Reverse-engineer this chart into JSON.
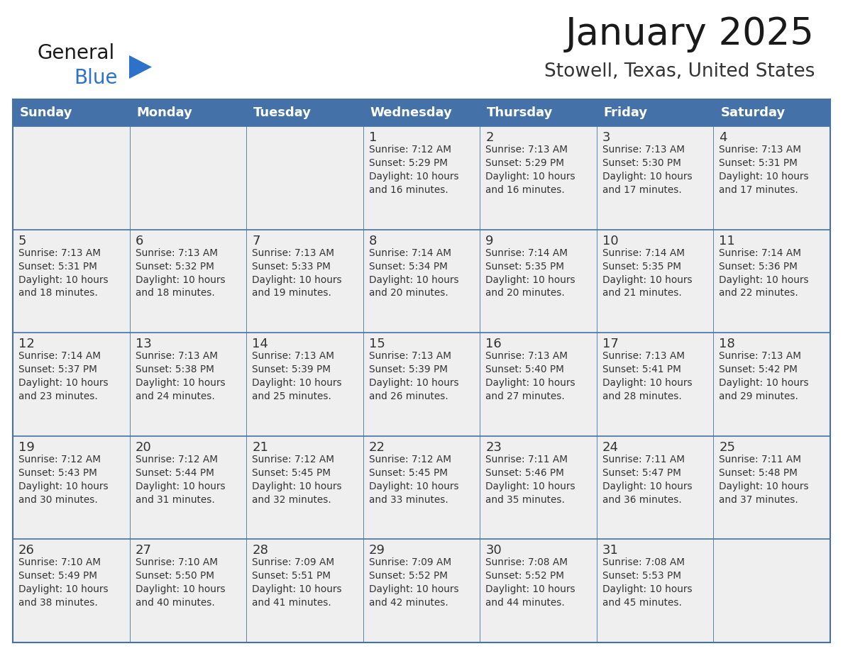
{
  "title": "January 2025",
  "subtitle": "Stowell, Texas, United States",
  "days_of_week": [
    "Sunday",
    "Monday",
    "Tuesday",
    "Wednesday",
    "Thursday",
    "Friday",
    "Saturday"
  ],
  "header_bg": "#4472A8",
  "header_text": "#FFFFFF",
  "cell_bg": "#EFEFEF",
  "cell_text": "#333333",
  "border_color": "#4472A8",
  "row_divider_color": "#4472A8",
  "title_color": "#1a1a1a",
  "subtitle_color": "#333333",
  "logo_general_color": "#1a1a1a",
  "logo_blue_color": "#2B72C8",
  "logo_triangle_color": "#2B72C8",
  "weeks": [
    [
      {
        "day": "",
        "info": ""
      },
      {
        "day": "",
        "info": ""
      },
      {
        "day": "",
        "info": ""
      },
      {
        "day": "1",
        "info": "Sunrise: 7:12 AM\nSunset: 5:29 PM\nDaylight: 10 hours\nand 16 minutes."
      },
      {
        "day": "2",
        "info": "Sunrise: 7:13 AM\nSunset: 5:29 PM\nDaylight: 10 hours\nand 16 minutes."
      },
      {
        "day": "3",
        "info": "Sunrise: 7:13 AM\nSunset: 5:30 PM\nDaylight: 10 hours\nand 17 minutes."
      },
      {
        "day": "4",
        "info": "Sunrise: 7:13 AM\nSunset: 5:31 PM\nDaylight: 10 hours\nand 17 minutes."
      }
    ],
    [
      {
        "day": "5",
        "info": "Sunrise: 7:13 AM\nSunset: 5:31 PM\nDaylight: 10 hours\nand 18 minutes."
      },
      {
        "day": "6",
        "info": "Sunrise: 7:13 AM\nSunset: 5:32 PM\nDaylight: 10 hours\nand 18 minutes."
      },
      {
        "day": "7",
        "info": "Sunrise: 7:13 AM\nSunset: 5:33 PM\nDaylight: 10 hours\nand 19 minutes."
      },
      {
        "day": "8",
        "info": "Sunrise: 7:14 AM\nSunset: 5:34 PM\nDaylight: 10 hours\nand 20 minutes."
      },
      {
        "day": "9",
        "info": "Sunrise: 7:14 AM\nSunset: 5:35 PM\nDaylight: 10 hours\nand 20 minutes."
      },
      {
        "day": "10",
        "info": "Sunrise: 7:14 AM\nSunset: 5:35 PM\nDaylight: 10 hours\nand 21 minutes."
      },
      {
        "day": "11",
        "info": "Sunrise: 7:14 AM\nSunset: 5:36 PM\nDaylight: 10 hours\nand 22 minutes."
      }
    ],
    [
      {
        "day": "12",
        "info": "Sunrise: 7:14 AM\nSunset: 5:37 PM\nDaylight: 10 hours\nand 23 minutes."
      },
      {
        "day": "13",
        "info": "Sunrise: 7:13 AM\nSunset: 5:38 PM\nDaylight: 10 hours\nand 24 minutes."
      },
      {
        "day": "14",
        "info": "Sunrise: 7:13 AM\nSunset: 5:39 PM\nDaylight: 10 hours\nand 25 minutes."
      },
      {
        "day": "15",
        "info": "Sunrise: 7:13 AM\nSunset: 5:39 PM\nDaylight: 10 hours\nand 26 minutes."
      },
      {
        "day": "16",
        "info": "Sunrise: 7:13 AM\nSunset: 5:40 PM\nDaylight: 10 hours\nand 27 minutes."
      },
      {
        "day": "17",
        "info": "Sunrise: 7:13 AM\nSunset: 5:41 PM\nDaylight: 10 hours\nand 28 minutes."
      },
      {
        "day": "18",
        "info": "Sunrise: 7:13 AM\nSunset: 5:42 PM\nDaylight: 10 hours\nand 29 minutes."
      }
    ],
    [
      {
        "day": "19",
        "info": "Sunrise: 7:12 AM\nSunset: 5:43 PM\nDaylight: 10 hours\nand 30 minutes."
      },
      {
        "day": "20",
        "info": "Sunrise: 7:12 AM\nSunset: 5:44 PM\nDaylight: 10 hours\nand 31 minutes."
      },
      {
        "day": "21",
        "info": "Sunrise: 7:12 AM\nSunset: 5:45 PM\nDaylight: 10 hours\nand 32 minutes."
      },
      {
        "day": "22",
        "info": "Sunrise: 7:12 AM\nSunset: 5:45 PM\nDaylight: 10 hours\nand 33 minutes."
      },
      {
        "day": "23",
        "info": "Sunrise: 7:11 AM\nSunset: 5:46 PM\nDaylight: 10 hours\nand 35 minutes."
      },
      {
        "day": "24",
        "info": "Sunrise: 7:11 AM\nSunset: 5:47 PM\nDaylight: 10 hours\nand 36 minutes."
      },
      {
        "day": "25",
        "info": "Sunrise: 7:11 AM\nSunset: 5:48 PM\nDaylight: 10 hours\nand 37 minutes."
      }
    ],
    [
      {
        "day": "26",
        "info": "Sunrise: 7:10 AM\nSunset: 5:49 PM\nDaylight: 10 hours\nand 38 minutes."
      },
      {
        "day": "27",
        "info": "Sunrise: 7:10 AM\nSunset: 5:50 PM\nDaylight: 10 hours\nand 40 minutes."
      },
      {
        "day": "28",
        "info": "Sunrise: 7:09 AM\nSunset: 5:51 PM\nDaylight: 10 hours\nand 41 minutes."
      },
      {
        "day": "29",
        "info": "Sunrise: 7:09 AM\nSunset: 5:52 PM\nDaylight: 10 hours\nand 42 minutes."
      },
      {
        "day": "30",
        "info": "Sunrise: 7:08 AM\nSunset: 5:52 PM\nDaylight: 10 hours\nand 44 minutes."
      },
      {
        "day": "31",
        "info": "Sunrise: 7:08 AM\nSunset: 5:53 PM\nDaylight: 10 hours\nand 45 minutes."
      },
      {
        "day": "",
        "info": ""
      }
    ]
  ]
}
